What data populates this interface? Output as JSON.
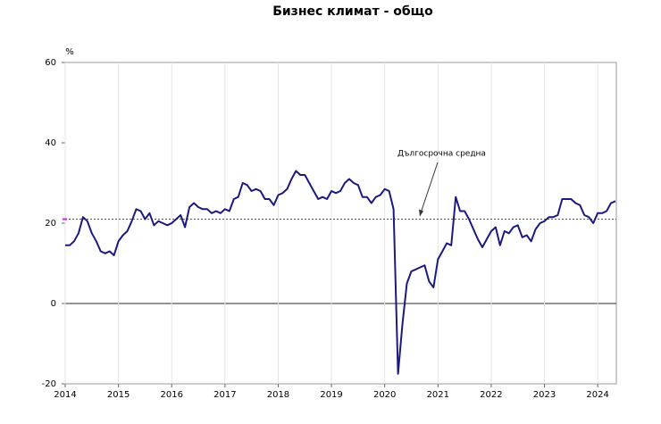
{
  "chart_data": {
    "type": "line",
    "title": "Бизнес климат - общо",
    "y_unit": "%",
    "categories": [
      "2014",
      null,
      null,
      null,
      null,
      null,
      null,
      null,
      null,
      null,
      null,
      null,
      "2015",
      null,
      null,
      null,
      null,
      null,
      null,
      null,
      null,
      null,
      null,
      null,
      "2016",
      null,
      null,
      null,
      null,
      null,
      null,
      null,
      null,
      null,
      null,
      null,
      "2017",
      null,
      null,
      null,
      null,
      null,
      null,
      null,
      null,
      null,
      null,
      null,
      "2018",
      null,
      null,
      null,
      null,
      null,
      null,
      null,
      null,
      null,
      null,
      null,
      "2019",
      null,
      null,
      null,
      null,
      null,
      null,
      null,
      null,
      null,
      null,
      null,
      "2020",
      null,
      null,
      null,
      null,
      null,
      null,
      null,
      null,
      null,
      null,
      null,
      "2021",
      null,
      null,
      null,
      null,
      null,
      null,
      null,
      null,
      null,
      null,
      null,
      "2022",
      null,
      null,
      null,
      null,
      null,
      null,
      null,
      null,
      null,
      null,
      null,
      "2023",
      null,
      null,
      null,
      null,
      null,
      null,
      null,
      null,
      null,
      null,
      null,
      "2024",
      null,
      null,
      null,
      null
    ],
    "values": [
      14.5,
      14.5,
      15.5,
      17.5,
      21.5,
      20.5,
      17.5,
      15.5,
      13,
      12.5,
      13,
      12,
      15.5,
      17,
      18,
      20.5,
      23.5,
      23,
      21,
      22.5,
      19.5,
      20.5,
      20,
      19.5,
      20,
      21,
      22,
      19,
      24,
      25,
      24,
      23.5,
      23.5,
      22.5,
      23,
      22.5,
      23.5,
      23,
      26,
      26.5,
      30,
      29.5,
      28,
      28.5,
      28,
      26,
      26,
      24.5,
      27,
      27.5,
      28.5,
      31,
      33,
      32,
      32,
      30,
      28,
      26,
      26.5,
      26,
      28,
      27.5,
      28,
      30,
      31,
      30,
      29.5,
      26.5,
      26.5,
      25,
      26.5,
      27,
      28.5,
      28,
      23.5,
      -17.5,
      -5,
      5,
      8,
      8.5,
      9,
      9.5,
      5.5,
      4,
      11,
      13,
      15,
      14.5,
      26.5,
      23,
      23,
      21,
      18.5,
      16,
      14,
      16,
      18,
      19,
      14.5,
      18,
      17.5,
      19,
      19.5,
      16.5,
      17,
      15.5,
      18.5,
      20,
      20.5,
      21.5,
      21.5,
      22,
      26,
      26,
      26,
      25,
      24.5,
      22,
      21.5,
      20,
      22.5,
      22.5,
      23,
      25,
      25.5
    ],
    "color": "#1a1a80",
    "ylim": [
      -20,
      60
    ],
    "yticks": [
      -20,
      0,
      20,
      40,
      60
    ],
    "reference_line": {
      "value": 21,
      "label": "Дългосрочна средна"
    },
    "grid": true
  }
}
